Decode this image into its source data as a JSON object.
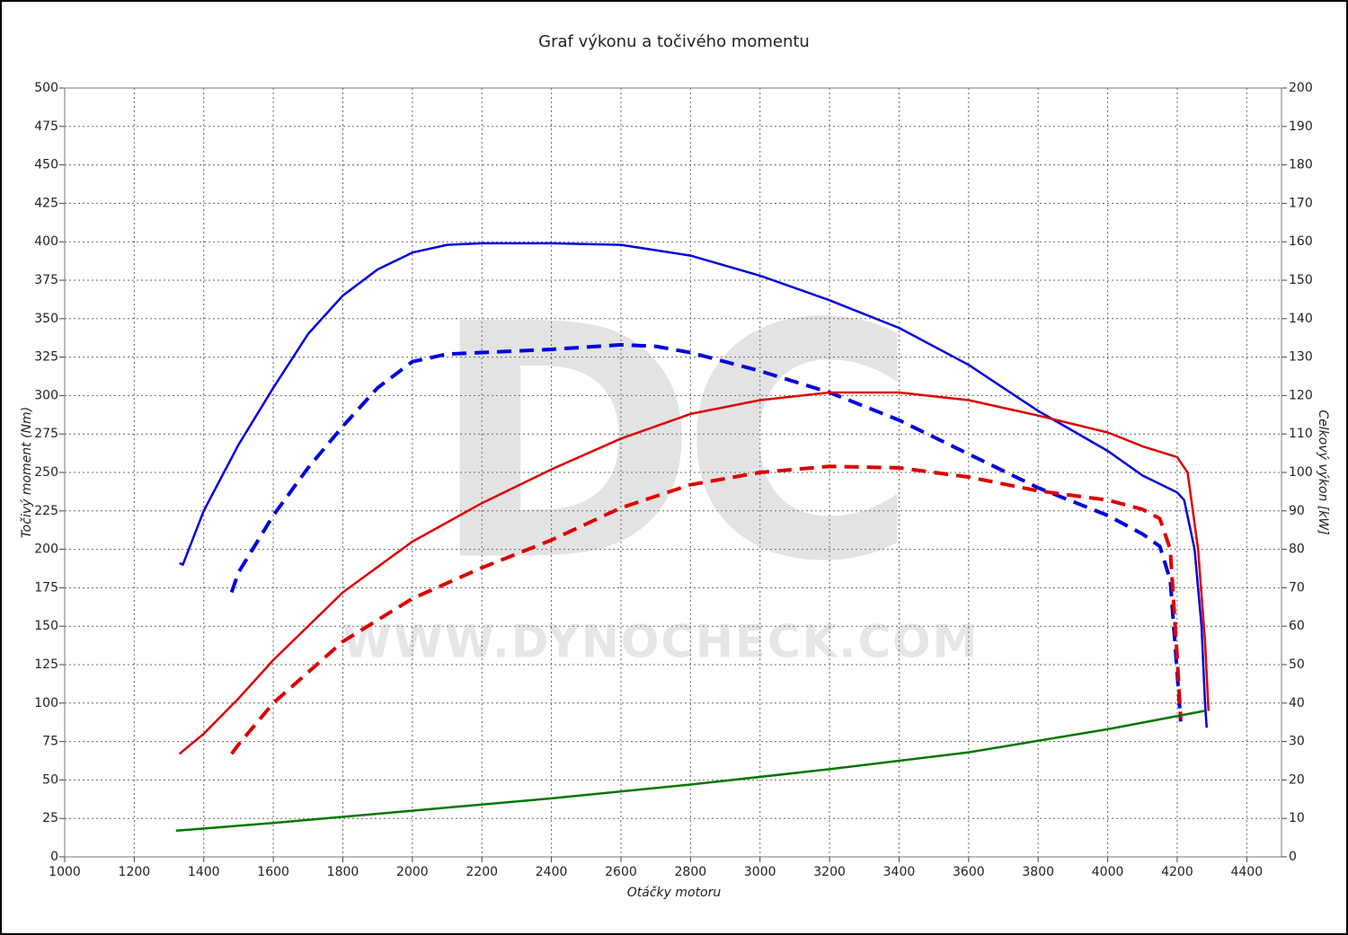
{
  "chart_data": {
    "type": "line",
    "title": "Graf výkonu a točivého momentu",
    "xlabel": "Otáčky motoru",
    "ylabel": "Točivý moment (Nm)",
    "y2label": "Celkový výkon [kW]",
    "watermark": {
      "logo": "DC",
      "url": "WWW.DYNOCHECK.COM"
    },
    "xlim": [
      1000,
      4500
    ],
    "xticks": [
      1000,
      1200,
      1400,
      1600,
      1800,
      2000,
      2200,
      2400,
      2600,
      2800,
      3000,
      3200,
      3400,
      3600,
      3800,
      4000,
      4200,
      4400
    ],
    "ylim": [
      0,
      500
    ],
    "yticks": [
      0,
      25,
      50,
      75,
      100,
      125,
      150,
      175,
      200,
      225,
      250,
      275,
      300,
      325,
      350,
      375,
      400,
      425,
      450,
      475,
      500
    ],
    "y2lim": [
      0,
      200
    ],
    "y2ticks": [
      0,
      10,
      20,
      30,
      40,
      50,
      60,
      70,
      80,
      90,
      100,
      110,
      120,
      130,
      140,
      150,
      160,
      170,
      180,
      190,
      200
    ],
    "grid": true,
    "series": [
      {
        "color": "#0000dd",
        "dashed": false,
        "axis": "y",
        "x": [
          1330,
          1340,
          1400,
          1500,
          1600,
          1700,
          1800,
          1900,
          2000,
          2100,
          2200,
          2400,
          2600,
          2800,
          3000,
          3200,
          3400,
          3600,
          3800,
          4000,
          4100,
          4200,
          4220,
          4250,
          4270,
          4280,
          4285
        ],
        "values": [
          191,
          190,
          225,
          268,
          305,
          340,
          365,
          382,
          393,
          398,
          399,
          399,
          398,
          391,
          378,
          362,
          344,
          320,
          290,
          264,
          248,
          237,
          232,
          200,
          150,
          100,
          84
        ]
      },
      {
        "color": "#0000dd",
        "dashed": true,
        "axis": "y",
        "x": [
          1480,
          1500,
          1600,
          1700,
          1800,
          1900,
          2000,
          2100,
          2200,
          2400,
          2600,
          2700,
          2800,
          3000,
          3200,
          3400,
          3600,
          3800,
          4000,
          4100,
          4150,
          4180,
          4200,
          4210
        ],
        "values": [
          172,
          185,
          222,
          253,
          280,
          305,
          322,
          327,
          328,
          330,
          333,
          332,
          328,
          316,
          302,
          284,
          262,
          240,
          222,
          210,
          202,
          180,
          120,
          88
        ]
      },
      {
        "color": "#dd0000",
        "dashed": false,
        "axis": "y2",
        "x": [
          1330,
          1400,
          1500,
          1600,
          1800,
          2000,
          2200,
          2400,
          2600,
          2800,
          3000,
          3200,
          3400,
          3600,
          3800,
          4000,
          4100,
          4200,
          4230,
          4260,
          4280,
          4290
        ],
        "values": [
          26.8,
          32,
          41.2,
          51.2,
          68.8,
          82,
          92,
          100.8,
          108.8,
          115.2,
          118.8,
          120.8,
          120.8,
          118.8,
          114.8,
          110.4,
          106.8,
          104,
          100,
          80,
          56,
          38
        ]
      },
      {
        "color": "#dd0000",
        "dashed": true,
        "axis": "y2",
        "x": [
          1480,
          1500,
          1600,
          1800,
          2000,
          2200,
          2400,
          2600,
          2800,
          3000,
          3200,
          3400,
          3600,
          3800,
          4000,
          4100,
          4150,
          4180,
          4200,
          4210
        ],
        "values": [
          26.8,
          29.2,
          40,
          56,
          67.2,
          75.2,
          82.4,
          90.8,
          96.8,
          100,
          101.6,
          101.2,
          98.8,
          95.2,
          92.8,
          90.4,
          88,
          80,
          52,
          36
        ]
      },
      {
        "color": "#007700",
        "dashed": false,
        "axis": "y2",
        "x": [
          1320,
          1600,
          2000,
          2400,
          2800,
          3200,
          3600,
          4000,
          4280
        ],
        "values": [
          6.8,
          8.8,
          12,
          15.2,
          18.8,
          22.8,
          27.2,
          33.2,
          38
        ]
      }
    ]
  }
}
